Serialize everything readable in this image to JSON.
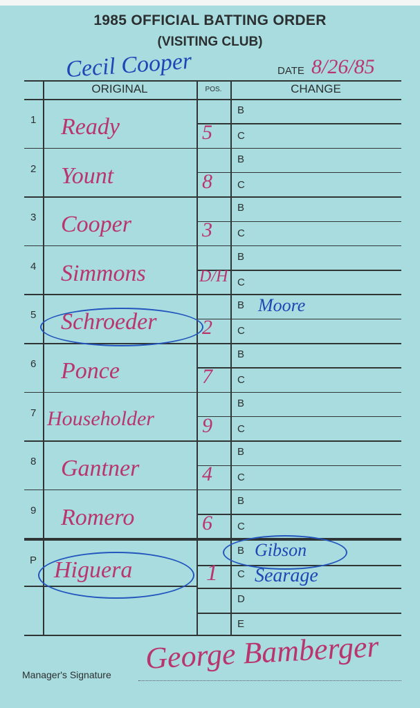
{
  "card": {
    "title": "1985 OFFICIAL BATTING ORDER",
    "subtitle": "(VISITING CLUB)",
    "date_label": "DATE",
    "date_value": "8/26/85",
    "top_signature": "Cecil Cooper",
    "headers": {
      "original": "ORIGINAL",
      "pos": "POS.",
      "change": "CHANGE"
    },
    "batters": [
      {
        "order": "1",
        "name": "Ready",
        "pos": "5",
        "change_b": "",
        "change_c": "",
        "circled": false
      },
      {
        "order": "2",
        "name": "Yount",
        "pos": "8",
        "change_b": "",
        "change_c": "",
        "circled": false
      },
      {
        "order": "3",
        "name": "Cooper",
        "pos": "3",
        "change_b": "",
        "change_c": "",
        "circled": false
      },
      {
        "order": "4",
        "name": "Simmons",
        "pos": "D/H",
        "change_b": "",
        "change_c": "",
        "circled": false
      },
      {
        "order": "5",
        "name": "Schroeder",
        "pos": "2",
        "change_b": "Moore",
        "change_c": "",
        "circled": true
      },
      {
        "order": "6",
        "name": "Ponce",
        "pos": "7",
        "change_b": "",
        "change_c": "",
        "circled": false
      },
      {
        "order": "7",
        "name": "Householder",
        "pos": "9",
        "change_b": "",
        "change_c": "",
        "circled": false
      },
      {
        "order": "8",
        "name": "Gantner",
        "pos": "4",
        "change_b": "",
        "change_c": "",
        "circled": false
      },
      {
        "order": "9",
        "name": "Romero",
        "pos": "6",
        "change_b": "",
        "change_c": "",
        "circled": false
      }
    ],
    "row_letters": [
      "B",
      "C"
    ],
    "pitcher": {
      "order": "P",
      "name": "Higuera",
      "pos": "1",
      "letters": [
        "B",
        "C",
        "D",
        "E"
      ],
      "changes": [
        "Gibson",
        "Searage"
      ]
    },
    "manager_label": "Manager's Signature",
    "manager_signature": "George Bamberger",
    "ink_colors": {
      "red": "#b8356e",
      "blue": "#1f46b5"
    },
    "card_color": "#a8dcdf"
  }
}
